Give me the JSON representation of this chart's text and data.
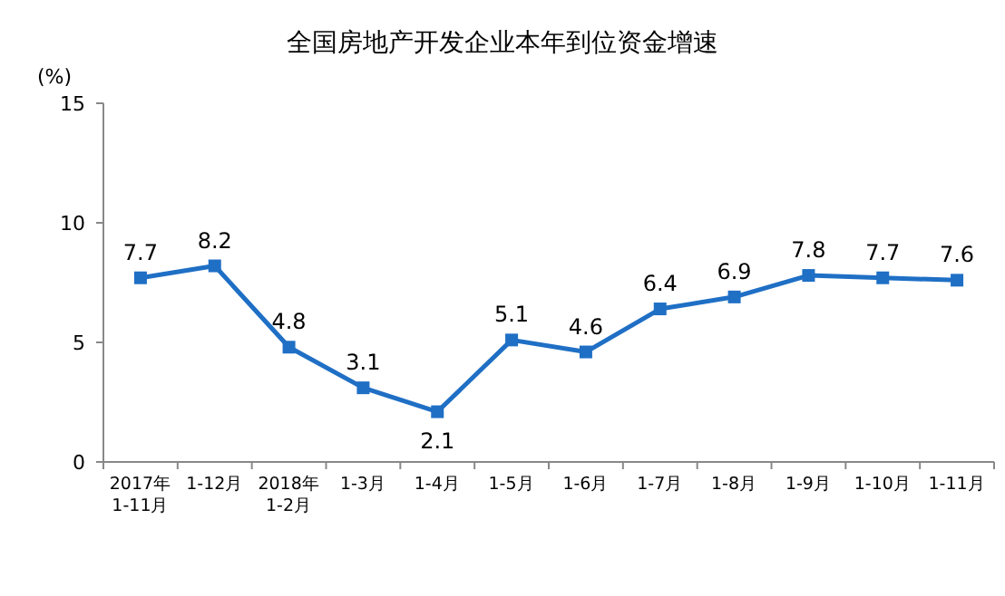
{
  "chart_data": {
    "type": "line",
    "title": "全国房地产开发企业本年到位资金增速",
    "ylabel": "(%)",
    "categories": [
      "2017年\n1-11月",
      "1-12月",
      "2018年\n1-2月",
      "1-3月",
      "1-4月",
      "1-5月",
      "1-6月",
      "1-7月",
      "1-8月",
      "1-9月",
      "1-10月",
      "1-11月"
    ],
    "values": [
      7.7,
      8.2,
      4.8,
      3.1,
      2.1,
      5.1,
      4.6,
      6.4,
      6.9,
      7.8,
      7.7,
      7.6
    ],
    "color": "#1f6fc5",
    "marker": "square",
    "data_labels": true,
    "ylim": [
      0,
      15
    ],
    "yticks": [
      0,
      5,
      10,
      15
    ],
    "grid": false
  }
}
